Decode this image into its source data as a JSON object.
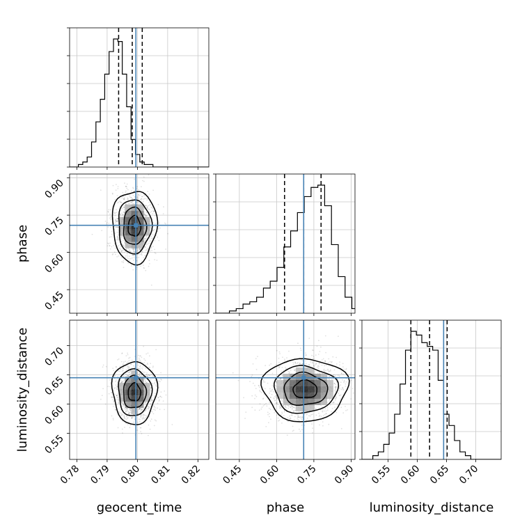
{
  "chart_data": {
    "type": "corner",
    "grid": true,
    "truth_color": "#4682b4",
    "parameters": [
      {
        "name": "geocent_time",
        "label": "geocent_time",
        "truth": 0.7995,
        "quantiles": [
          0.7938,
          0.7983,
          0.8016
        ],
        "range": [
          0.7776,
          0.8236
        ],
        "ticks": [
          0.78,
          0.79,
          0.8,
          0.81,
          0.82
        ],
        "tick_labels": [
          "0.78",
          "0.79",
          "0.80",
          "0.81",
          "0.82"
        ],
        "hist_edges_start": 0.7776,
        "hist_bin_width": 0.00145,
        "hist": [
          0,
          0,
          1,
          2,
          4,
          10,
          18,
          27,
          37,
          46,
          51,
          50,
          37,
          24,
          11,
          5,
          2,
          1,
          1,
          0,
          0,
          0,
          0,
          0,
          0,
          0,
          0,
          0,
          0,
          0,
          0,
          0
        ]
      },
      {
        "name": "phase",
        "label": "phase",
        "truth": 0.709,
        "quantiles": [
          0.632,
          0.709,
          0.779
        ],
        "range": [
          0.3551,
          0.9156
        ],
        "ticks": [
          0.45,
          0.6,
          0.75,
          0.9
        ],
        "tick_labels": [
          "0.45",
          "0.60",
          "0.75",
          "0.90"
        ],
        "hist_edges_start": 0.3551,
        "hist_bin_width": 0.0274,
        "hist": [
          0,
          0,
          1,
          2,
          4,
          5,
          7,
          11,
          14,
          20,
          29,
          36,
          44,
          51,
          55,
          56,
          47,
          30,
          16,
          7,
          2,
          0
        ]
      },
      {
        "name": "luminosity_distance",
        "label": "luminosity_distance",
        "truth": 0.645,
        "quantiles": [
          0.589,
          0.621,
          0.651
        ],
        "range": [
          0.5054,
          0.7433
        ],
        "ticks": [
          0.55,
          0.6,
          0.65,
          0.7
        ],
        "tick_labels": [
          "0.55",
          "0.60",
          "0.65",
          "0.70"
        ],
        "hist_edges_start": 0.5054,
        "hist_bin_width": 0.0093,
        "hist": [
          0,
          0,
          1,
          2,
          4,
          7,
          12,
          20,
          29,
          34,
          33,
          31,
          30,
          29,
          21,
          12,
          9,
          5,
          2,
          1,
          0,
          0,
          0,
          0,
          0,
          0
        ]
      }
    ],
    "pairs": [
      {
        "x": "geocent_time",
        "y": "phase",
        "center": [
          0.799,
          0.705
        ],
        "spread": [
          0.003,
          0.06
        ],
        "rho": 0.0
      },
      {
        "x": "geocent_time",
        "y": "luminosity_distance",
        "center": [
          0.799,
          0.62
        ],
        "spread": [
          0.003,
          0.022
        ],
        "rho": 0.0
      },
      {
        "x": "phase",
        "y": "luminosity_distance",
        "center": [
          0.715,
          0.625
        ],
        "spread": [
          0.07,
          0.022
        ],
        "rho": -0.1
      }
    ],
    "contour_levels": [
      0.118,
      0.393,
      0.675,
      0.865
    ],
    "legend": "none"
  }
}
